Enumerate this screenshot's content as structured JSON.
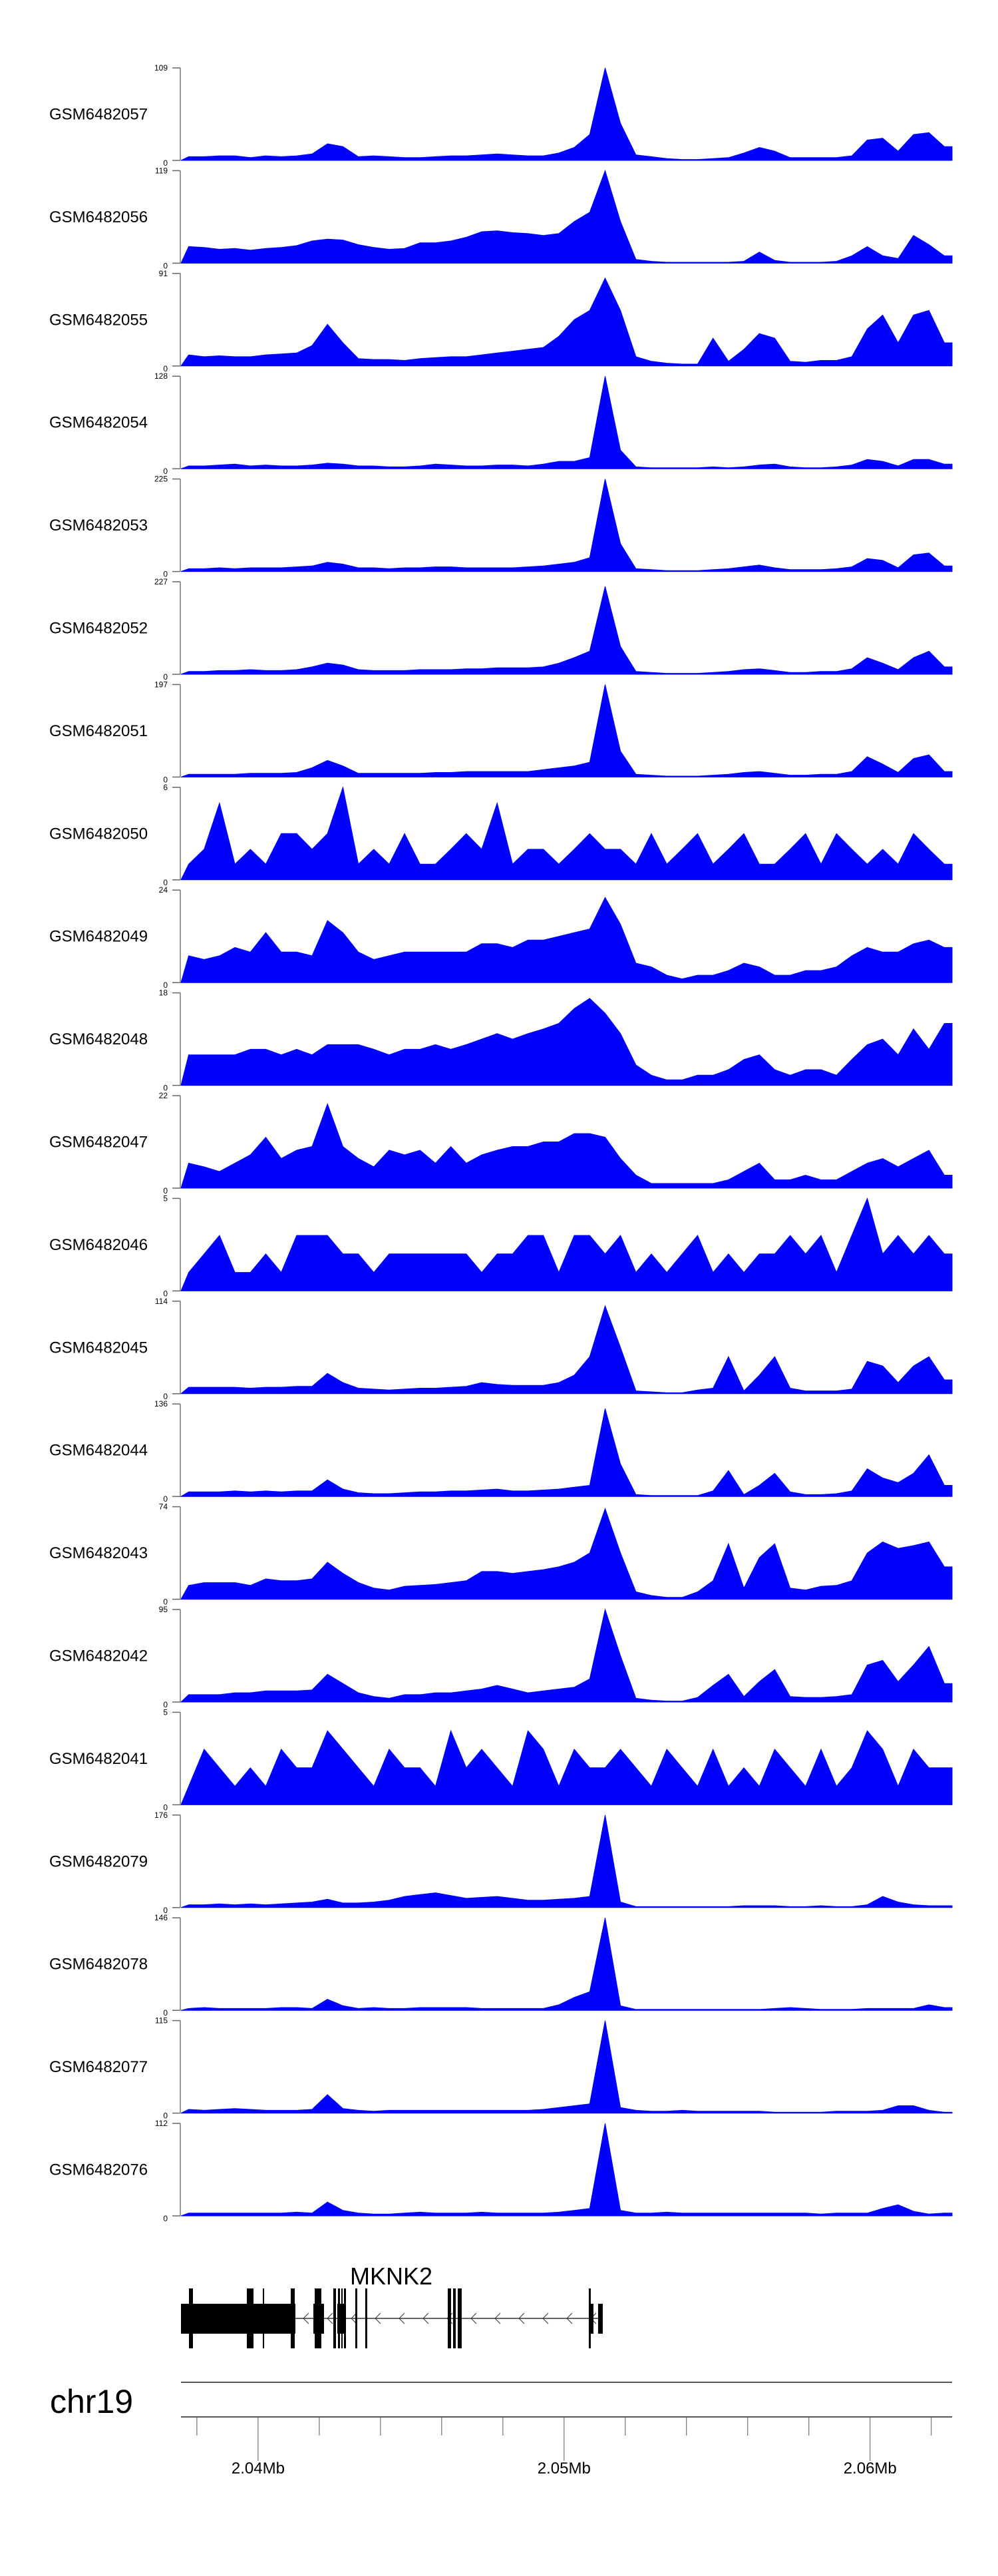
{
  "chart_data": {
    "type": "area",
    "fill_color": "#0000FF",
    "xlim_bp": [
      2037480,
      2062680
    ],
    "bins_per_track": 50,
    "value_note": "values are signal per bin as percent of each track's y-axis max",
    "tracks": [
      {
        "name": "GSM6482057",
        "ymax": 109,
        "values": [
          4,
          4,
          5,
          5,
          3,
          5,
          4,
          5,
          7,
          18,
          15,
          4,
          5,
          4,
          3,
          3,
          4,
          5,
          5,
          6,
          7,
          6,
          5,
          5,
          8,
          14,
          28,
          100,
          40,
          6,
          4,
          2,
          1,
          1,
          2,
          3,
          8,
          14,
          10,
          3,
          3,
          3,
          3,
          5,
          22,
          24,
          10,
          28,
          30,
          15
        ]
      },
      {
        "name": "GSM6482056",
        "ymax": 119,
        "values": [
          18,
          17,
          15,
          16,
          14,
          16,
          17,
          19,
          24,
          26,
          25,
          20,
          17,
          15,
          16,
          22,
          22,
          24,
          28,
          34,
          35,
          33,
          32,
          30,
          32,
          45,
          55,
          100,
          45,
          4,
          2,
          1,
          1,
          1,
          1,
          1,
          2,
          12,
          3,
          1,
          1,
          1,
          2,
          8,
          18,
          8,
          5,
          30,
          20,
          8
        ]
      },
      {
        "name": "GSM6482055",
        "ymax": 91,
        "values": [
          12,
          10,
          11,
          10,
          10,
          12,
          13,
          14,
          22,
          45,
          25,
          8,
          7,
          7,
          6,
          8,
          9,
          10,
          10,
          12,
          14,
          16,
          18,
          20,
          32,
          50,
          60,
          95,
          60,
          10,
          5,
          3,
          2,
          2,
          30,
          5,
          18,
          35,
          30,
          5,
          4,
          6,
          6,
          10,
          40,
          55,
          25,
          55,
          60,
          25
        ]
      },
      {
        "name": "GSM6482054",
        "ymax": 128,
        "values": [
          3,
          3,
          4,
          5,
          3,
          4,
          3,
          3,
          4,
          6,
          5,
          3,
          3,
          2,
          2,
          3,
          5,
          4,
          3,
          3,
          4,
          4,
          3,
          5,
          8,
          8,
          12,
          100,
          20,
          2,
          1,
          1,
          1,
          1,
          2,
          1,
          2,
          4,
          5,
          2,
          1,
          1,
          2,
          4,
          10,
          8,
          3,
          10,
          10,
          5
        ]
      },
      {
        "name": "GSM6482053",
        "ymax": 225,
        "values": [
          3,
          3,
          4,
          3,
          4,
          4,
          4,
          5,
          6,
          10,
          8,
          4,
          4,
          3,
          4,
          4,
          5,
          5,
          4,
          4,
          4,
          4,
          5,
          6,
          8,
          10,
          15,
          100,
          30,
          3,
          2,
          1,
          1,
          1,
          2,
          3,
          5,
          7,
          4,
          2,
          2,
          2,
          3,
          5,
          14,
          12,
          4,
          18,
          20,
          6
        ]
      },
      {
        "name": "GSM6482052",
        "ymax": 227,
        "values": [
          3,
          3,
          4,
          4,
          5,
          4,
          4,
          5,
          8,
          12,
          10,
          5,
          4,
          4,
          4,
          5,
          5,
          5,
          6,
          6,
          7,
          7,
          7,
          8,
          12,
          18,
          25,
          95,
          30,
          3,
          2,
          1,
          1,
          1,
          2,
          3,
          5,
          6,
          4,
          2,
          2,
          3,
          3,
          6,
          18,
          12,
          5,
          18,
          25,
          8
        ]
      },
      {
        "name": "GSM6482051",
        "ymax": 197,
        "values": [
          3,
          3,
          3,
          3,
          4,
          4,
          4,
          5,
          10,
          18,
          12,
          4,
          4,
          4,
          4,
          4,
          5,
          5,
          6,
          6,
          6,
          6,
          6,
          8,
          10,
          12,
          16,
          100,
          28,
          3,
          2,
          1,
          1,
          1,
          2,
          3,
          5,
          6,
          4,
          2,
          2,
          3,
          3,
          6,
          22,
          14,
          5,
          20,
          24,
          6
        ]
      },
      {
        "name": "GSM6482050",
        "ymax": 6,
        "values": [
          17,
          33,
          83,
          17,
          33,
          17,
          50,
          50,
          33,
          50,
          100,
          17,
          33,
          17,
          50,
          17,
          17,
          33,
          50,
          33,
          83,
          17,
          33,
          33,
          17,
          33,
          50,
          33,
          33,
          17,
          50,
          17,
          33,
          50,
          17,
          33,
          50,
          17,
          17,
          33,
          50,
          17,
          50,
          33,
          17,
          33,
          17,
          50,
          33,
          17
        ]
      },
      {
        "name": "GSM6482049",
        "ymax": 24,
        "values": [
          29,
          25,
          29,
          38,
          33,
          54,
          33,
          33,
          29,
          67,
          54,
          33,
          25,
          29,
          33,
          33,
          33,
          33,
          33,
          42,
          42,
          38,
          46,
          46,
          50,
          54,
          58,
          92,
          63,
          21,
          17,
          8,
          4,
          8,
          8,
          13,
          21,
          17,
          8,
          8,
          13,
          13,
          17,
          29,
          38,
          33,
          33,
          42,
          46,
          38
        ]
      },
      {
        "name": "GSM6482048",
        "ymax": 18,
        "values": [
          33,
          33,
          33,
          33,
          39,
          39,
          33,
          39,
          33,
          44,
          44,
          44,
          39,
          33,
          39,
          39,
          44,
          39,
          44,
          50,
          56,
          50,
          56,
          61,
          67,
          83,
          94,
          78,
          56,
          22,
          11,
          6,
          6,
          11,
          11,
          17,
          28,
          33,
          17,
          11,
          17,
          17,
          11,
          28,
          44,
          50,
          33,
          61,
          39,
          67
        ]
      },
      {
        "name": "GSM6482047",
        "ymax": 22,
        "values": [
          27,
          23,
          18,
          27,
          36,
          55,
          32,
          41,
          45,
          91,
          45,
          32,
          23,
          41,
          36,
          41,
          27,
          45,
          27,
          36,
          41,
          45,
          45,
          50,
          50,
          59,
          59,
          55,
          32,
          14,
          5,
          5,
          5,
          5,
          5,
          9,
          18,
          27,
          9,
          9,
          14,
          9,
          9,
          18,
          27,
          32,
          23,
          32,
          41,
          14
        ]
      },
      {
        "name": "GSM6482046",
        "ymax": 5,
        "values": [
          20,
          40,
          60,
          20,
          20,
          40,
          20,
          60,
          60,
          60,
          40,
          40,
          20,
          40,
          40,
          40,
          40,
          40,
          40,
          20,
          40,
          40,
          60,
          60,
          20,
          60,
          60,
          40,
          60,
          20,
          40,
          20,
          40,
          60,
          20,
          40,
          20,
          40,
          40,
          60,
          40,
          60,
          20,
          60,
          100,
          40,
          60,
          40,
          60,
          40
        ]
      },
      {
        "name": "GSM6482045",
        "ymax": 114,
        "values": [
          7,
          7,
          7,
          7,
          6,
          7,
          7,
          8,
          8,
          22,
          12,
          6,
          5,
          4,
          5,
          6,
          6,
          7,
          8,
          12,
          10,
          9,
          9,
          9,
          12,
          20,
          40,
          95,
          50,
          3,
          2,
          1,
          1,
          4,
          6,
          40,
          3,
          20,
          40,
          6,
          3,
          3,
          3,
          5,
          35,
          30,
          12,
          30,
          40,
          15
        ]
      },
      {
        "name": "GSM6482044",
        "ymax": 136,
        "values": [
          5,
          5,
          5,
          6,
          5,
          6,
          5,
          6,
          6,
          18,
          8,
          4,
          3,
          3,
          4,
          5,
          5,
          6,
          6,
          7,
          8,
          6,
          6,
          7,
          8,
          10,
          12,
          95,
          35,
          2,
          1,
          1,
          1,
          1,
          6,
          28,
          2,
          12,
          25,
          5,
          2,
          2,
          3,
          6,
          30,
          20,
          15,
          25,
          45,
          12
        ]
      },
      {
        "name": "GSM6482043",
        "ymax": 74,
        "values": [
          15,
          18,
          18,
          18,
          15,
          22,
          20,
          20,
          22,
          40,
          28,
          18,
          12,
          10,
          14,
          15,
          16,
          18,
          20,
          30,
          30,
          28,
          30,
          32,
          35,
          40,
          50,
          98,
          50,
          8,
          4,
          2,
          2,
          8,
          20,
          60,
          12,
          45,
          60,
          12,
          10,
          14,
          15,
          20,
          50,
          62,
          55,
          58,
          62,
          35
        ]
      },
      {
        "name": "GSM6482042",
        "ymax": 95,
        "values": [
          8,
          8,
          8,
          10,
          10,
          12,
          12,
          12,
          13,
          30,
          20,
          10,
          6,
          4,
          8,
          8,
          10,
          10,
          12,
          14,
          18,
          14,
          10,
          12,
          14,
          16,
          25,
          100,
          50,
          4,
          2,
          1,
          1,
          5,
          18,
          30,
          6,
          22,
          35,
          6,
          5,
          5,
          6,
          8,
          40,
          45,
          22,
          40,
          60,
          20
        ]
      },
      {
        "name": "GSM6482041",
        "ymax": 5,
        "values": [
          20,
          60,
          40,
          20,
          40,
          20,
          60,
          40,
          40,
          80,
          60,
          40,
          20,
          60,
          40,
          40,
          20,
          80,
          40,
          60,
          40,
          20,
          80,
          60,
          20,
          60,
          40,
          40,
          60,
          40,
          20,
          60,
          40,
          20,
          60,
          20,
          40,
          20,
          60,
          40,
          20,
          60,
          20,
          40,
          80,
          60,
          20,
          60,
          40,
          40
        ]
      },
      {
        "name": "GSM6482079",
        "ymax": 176,
        "values": [
          3,
          3,
          4,
          3,
          4,
          3,
          4,
          5,
          6,
          9,
          5,
          5,
          6,
          8,
          12,
          14,
          16,
          13,
          10,
          11,
          12,
          10,
          8,
          8,
          9,
          10,
          12,
          100,
          6,
          1,
          1,
          1,
          1,
          1,
          1,
          1,
          2,
          2,
          2,
          1,
          1,
          2,
          1,
          1,
          3,
          12,
          6,
          3,
          2,
          2
        ]
      },
      {
        "name": "GSM6482078",
        "ymax": 146,
        "values": [
          2,
          3,
          2,
          2,
          2,
          2,
          3,
          3,
          2,
          12,
          5,
          2,
          3,
          2,
          2,
          3,
          3,
          3,
          3,
          2,
          2,
          2,
          2,
          2,
          6,
          14,
          20,
          100,
          5,
          1,
          1,
          1,
          1,
          1,
          1,
          1,
          1,
          1,
          2,
          3,
          2,
          1,
          1,
          1,
          2,
          2,
          2,
          2,
          6,
          3
        ]
      },
      {
        "name": "GSM6482077",
        "ymax": 115,
        "values": [
          4,
          3,
          4,
          5,
          4,
          3,
          3,
          3,
          4,
          20,
          5,
          3,
          2,
          3,
          3,
          3,
          3,
          3,
          3,
          3,
          3,
          3,
          3,
          4,
          6,
          8,
          10,
          100,
          6,
          3,
          2,
          2,
          3,
          2,
          2,
          2,
          2,
          2,
          1,
          1,
          1,
          1,
          2,
          2,
          2,
          3,
          8,
          8,
          3,
          1
        ]
      },
      {
        "name": "GSM6482076",
        "ymax": 112,
        "values": [
          3,
          3,
          3,
          3,
          3,
          3,
          3,
          4,
          3,
          15,
          6,
          3,
          2,
          2,
          3,
          4,
          3,
          3,
          3,
          4,
          3,
          3,
          3,
          3,
          4,
          6,
          8,
          100,
          6,
          3,
          3,
          4,
          3,
          3,
          3,
          3,
          3,
          3,
          3,
          3,
          3,
          2,
          3,
          3,
          3,
          8,
          12,
          5,
          2,
          3
        ]
      }
    ],
    "gene": {
      "label": "MKNK2",
      "strand": "-",
      "start": 2037480,
      "end": 2051263,
      "blocks": [
        [
          2037480,
          2041219
        ],
        [
          2041806,
          2042154
        ],
        [
          2042589,
          2042872
        ],
        [
          2050850,
          2050959
        ],
        [
          2051111,
          2051263
        ]
      ],
      "tall_exons": [
        [
          2037741,
          2037871
        ],
        [
          2039632,
          2039850
        ],
        [
          2040154,
          2040198
        ],
        [
          2041067,
          2041198
        ],
        [
          2041850,
          2042067
        ],
        [
          2042458,
          2042545
        ],
        [
          2042611,
          2042676
        ],
        [
          2042719,
          2042763
        ],
        [
          2042806,
          2042872
        ],
        [
          2043176,
          2043241
        ],
        [
          2043502,
          2043567
        ],
        [
          2046198,
          2046306
        ],
        [
          2046372,
          2046459
        ],
        [
          2046524,
          2046654
        ],
        [
          2050807,
          2050872
        ]
      ]
    },
    "genome_axis": {
      "chromosome": "chr19",
      "minor_tick_step_bp": 2000,
      "major_ticks": [
        {
          "bp": 2040000,
          "label": "2.04Mb"
        },
        {
          "bp": 2050000,
          "label": "2.05Mb"
        },
        {
          "bp": 2060000,
          "label": "2.06Mb"
        }
      ]
    }
  }
}
